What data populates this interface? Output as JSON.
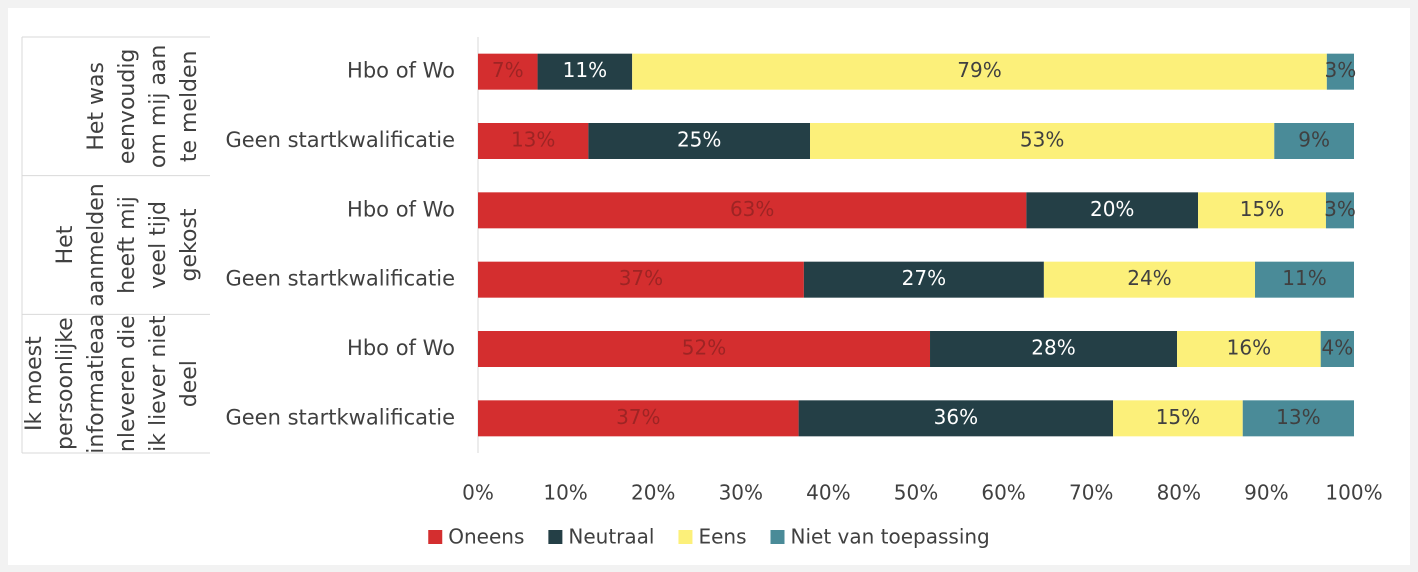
{
  "chart_data": {
    "type": "stacked_bar_horizontal",
    "categories": [
      "Hbo of Wo",
      "Geen startkwalificatie",
      "Hbo of Wo",
      "Geen startkwalificatie",
      "Hbo of Wo",
      "Geen startkwalificatie"
    ],
    "groups": [
      {
        "lines": [
          "Het was",
          "eenvoudig",
          "om mij aan",
          "te melden"
        ],
        "span": 2
      },
      {
        "lines": [
          "Het",
          "aanmelden",
          "heeft mij",
          "veel tijd",
          "gekost"
        ],
        "span": 2
      },
      {
        "lines": [
          "Ik moest",
          "persoonlijke",
          "informatieaa",
          "nleveren die",
          "ik liever niet",
          "deel"
        ],
        "span": 2
      }
    ],
    "series": [
      {
        "name": "Oneens",
        "color": "#d42e2f",
        "label_color": "#9e2424",
        "values": [
          6.8,
          12.6,
          62.6,
          37.2,
          51.6,
          36.6
        ],
        "value_labels": [
          "7%",
          "13%",
          "63%",
          "37%",
          "52%",
          "37%"
        ]
      },
      {
        "name": "Neutraal",
        "color": "#243f46",
        "label_color": "#ffffff",
        "values": [
          10.8,
          25.3,
          19.6,
          27.4,
          28.2,
          35.9
        ],
        "value_labels": [
          "11%",
          "25%",
          "20%",
          "27%",
          "28%",
          "36%"
        ]
      },
      {
        "name": "Eens",
        "color": "#fcf07a",
        "label_color": "#404040",
        "values": [
          79.3,
          53.0,
          14.6,
          24.1,
          16.4,
          14.8
        ],
        "value_labels": [
          "79%",
          "53%",
          "15%",
          "24%",
          "16%",
          "15%"
        ]
      },
      {
        "name": "Niet van toepassing",
        "color": "#4a8b98",
        "label_color": "#404040",
        "values": [
          3.1,
          9.1,
          3.2,
          11.3,
          3.8,
          12.7
        ],
        "value_labels": [
          "3%",
          "9%",
          "3%",
          "11%",
          "4%",
          "13%"
        ]
      }
    ],
    "xlim": [
      0,
      100
    ],
    "xticks": [
      {
        "value": 0,
        "label": "0%"
      },
      {
        "value": 10,
        "label": "10%"
      },
      {
        "value": 20,
        "label": "20%"
      },
      {
        "value": 30,
        "label": "30%"
      },
      {
        "value": 40,
        "label": "40%"
      },
      {
        "value": 50,
        "label": "50%"
      },
      {
        "value": 60,
        "label": "60%"
      },
      {
        "value": 70,
        "label": "70%"
      },
      {
        "value": 80,
        "label": "80%"
      },
      {
        "value": 90,
        "label": "90%"
      },
      {
        "value": 100,
        "label": "100%"
      }
    ],
    "legend": "bottom"
  }
}
